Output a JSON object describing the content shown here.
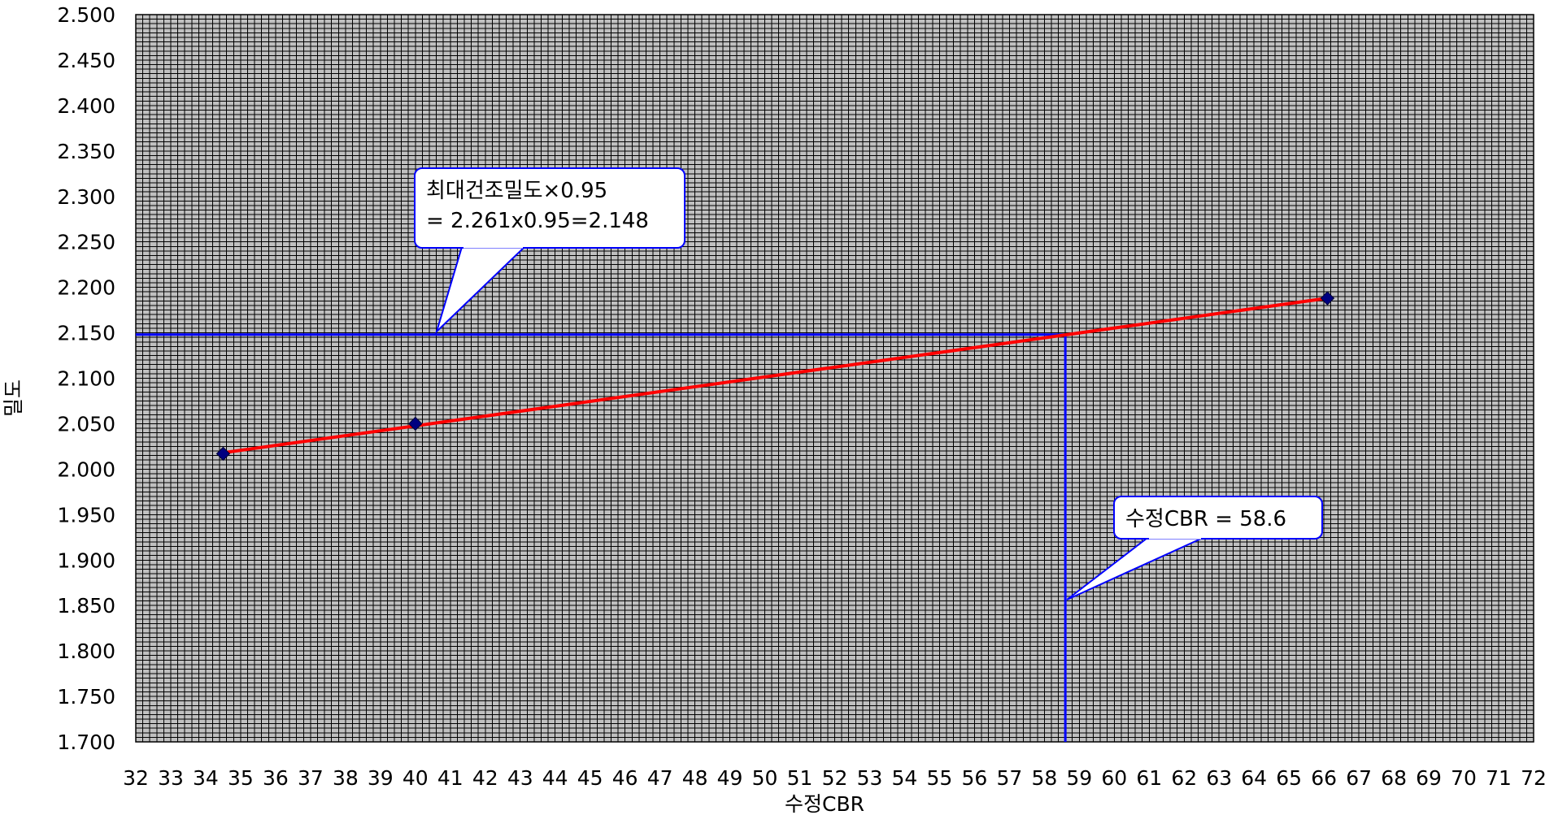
{
  "chart_data": {
    "type": "scatter",
    "xlabel": "수정CBR",
    "ylabel": "밀도",
    "xlim": [
      32,
      72
    ],
    "ylim": [
      1.7,
      2.5
    ],
    "x_ticks": [
      "32",
      "33",
      "34",
      "35",
      "36",
      "37",
      "38",
      "39",
      "40",
      "41",
      "42",
      "43",
      "44",
      "45",
      "46",
      "47",
      "48",
      "49",
      "50",
      "51",
      "52",
      "53",
      "54",
      "55",
      "56",
      "57",
      "58",
      "59",
      "60",
      "61",
      "62",
      "63",
      "64",
      "65",
      "66",
      "67",
      "68",
      "69",
      "70",
      "71",
      "72"
    ],
    "y_ticks": [
      "1.700",
      "1.750",
      "1.800",
      "1.850",
      "1.900",
      "1.950",
      "2.000",
      "2.050",
      "2.100",
      "2.150",
      "2.200",
      "2.250",
      "2.300",
      "2.350",
      "2.400",
      "2.450",
      "2.500"
    ],
    "grid": true,
    "background_color": "#c0c0c0",
    "grid_color": "#000000",
    "points": [
      {
        "x": 34.5,
        "y": 2.017
      },
      {
        "x": 40.0,
        "y": 2.05
      },
      {
        "x": 66.1,
        "y": 2.188
      }
    ],
    "marker_color": "#000080",
    "fit_line": {
      "x": [
        34.5,
        66.1
      ],
      "y": [
        2.018,
        2.188
      ],
      "color": "#ff0000"
    },
    "reference_lines": {
      "horizontal_y": 2.148,
      "vertical_x": 58.6,
      "color": "#0000ff"
    },
    "annotations": [
      {
        "lines": [
          "최대건조밀도×0.95",
          "= 2.261x0.95=2.148"
        ]
      },
      {
        "lines": [
          "수정CBR = 58.6"
        ]
      }
    ]
  }
}
